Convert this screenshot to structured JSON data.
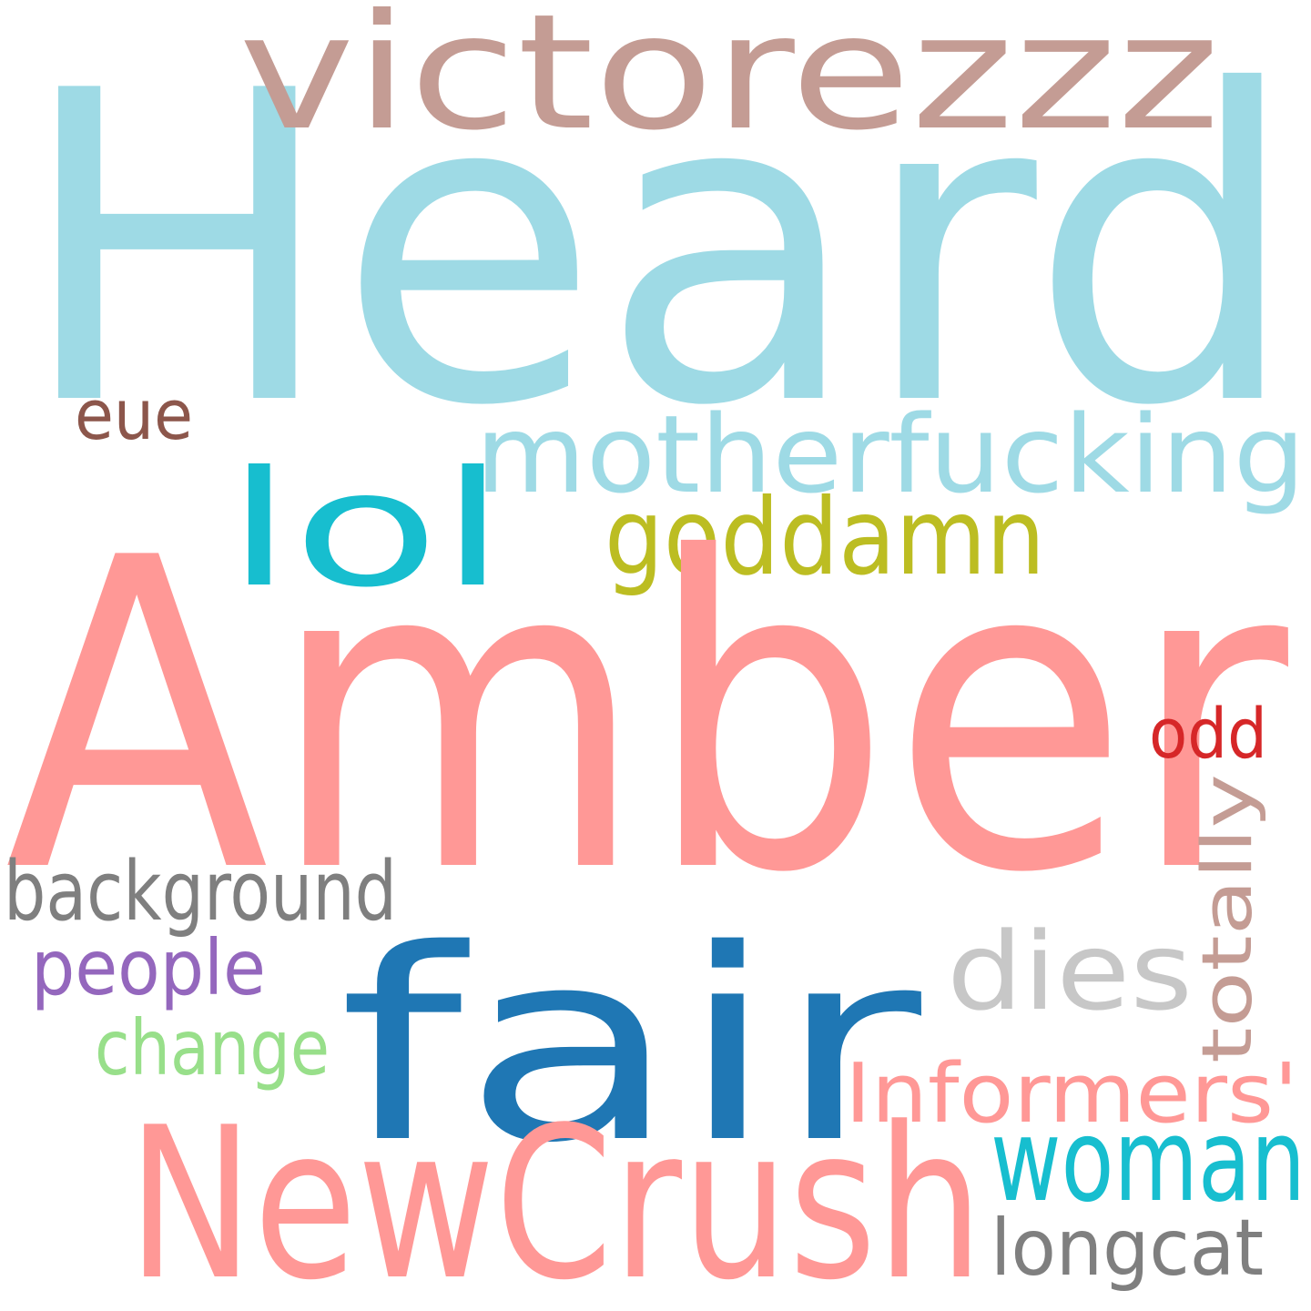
{
  "background_color": "#ffffff",
  "words": [
    {
      "text": "Heard",
      "color": "#9edae5"
    },
    {
      "text": "victorezzz",
      "color": "#c49c94"
    },
    {
      "text": "eue",
      "color": "#8c564b"
    },
    {
      "text": "motherfucking",
      "color": "#9edae5"
    },
    {
      "text": "lol",
      "color": "#17becf"
    },
    {
      "text": "goddamn",
      "color": "#bcbd22"
    },
    {
      "text": "Amber",
      "color": "#ff9896"
    },
    {
      "text": "odd",
      "color": "#d62728"
    },
    {
      "text": "totally",
      "color": "#c49c94"
    },
    {
      "text": "background",
      "color": "#7f7f7f"
    },
    {
      "text": "dies",
      "color": "#c7c7c7"
    },
    {
      "text": "people",
      "color": "#9467bd"
    },
    {
      "text": "fair",
      "color": "#1f77b4"
    },
    {
      "text": "change",
      "color": "#98df8a"
    },
    {
      "text": "Informers'",
      "color": "#ff9896"
    },
    {
      "text": "woman",
      "color": "#17becf"
    },
    {
      "text": "NewCrush",
      "color": "#ff9896"
    },
    {
      "text": "longcat",
      "color": "#7f7f7f"
    }
  ]
}
